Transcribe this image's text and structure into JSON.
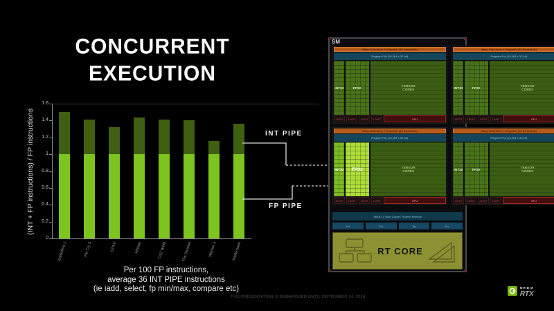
{
  "slide": {
    "title": [
      "CONCURRENT",
      "EXECUTION"
    ],
    "note": [
      "Per 100 FP instructions,",
      "average 36 INT PIPE instructions",
      "(ie iadd, select, fp min/max, compare etc)"
    ],
    "footer": "THIS PRESENTATION IS EMBARGOED UNTIL SEPTEMBER 14, 2018"
  },
  "chart_data": {
    "type": "bar",
    "stacked": true,
    "title": "",
    "xlabel": "",
    "ylabel": "(INT + FP instructions) / FP instructions",
    "ylim": [
      0,
      1.6
    ],
    "yticks": [
      "0",
      "0.2",
      "0.4",
      "0.6",
      "0.8",
      "1",
      "1.2",
      "1.4",
      "1.6"
    ],
    "grid": "top-line-only",
    "legend_position": "none",
    "categories": [
      "Battlefield 1",
      "Far Cry 5",
      "GTA V",
      "Hitman",
      "CoD WWII",
      "The Division",
      "Witcher 3",
      "Wolfenstein"
    ],
    "series": [
      {
        "name": "FP PIPE",
        "color": "#7dc41f",
        "values": [
          1,
          1,
          1,
          1,
          1,
          1,
          1,
          1
        ]
      },
      {
        "name": "INT PIPE",
        "color": "#415f10",
        "values": [
          0.5,
          0.41,
          0.32,
          0.44,
          0.41,
          0.4,
          0.16,
          0.36
        ]
      }
    ],
    "totals": [
      1.5,
      1.41,
      1.32,
      1.44,
      1.41,
      1.4,
      1.16,
      1.36
    ],
    "annotations": [
      {
        "label": "INT PIPE",
        "points_to": "INT32 unit in SM"
      },
      {
        "label": "FP PIPE",
        "points_to": "FP32 unit in SM"
      }
    ]
  },
  "pipes": {
    "int": "INT PIPE",
    "fp": "FP PIPE"
  },
  "sm": {
    "label": "SM",
    "quadrant": {
      "scheduler": "Warp Scheduler + Dispatch (32 thread/clk)",
      "register_file": "Register File (16,384 x 32-bit)",
      "int32": "INT32",
      "fp32": "FP32",
      "tensor": "TENSOR CORES",
      "ldst": "LD/ST",
      "sfu": "SFU"
    },
    "quadrant_count": 4,
    "highlight_quadrant": 2,
    "l1": "96KB L1 Data Cache / Shared Memory",
    "tex": "Tex",
    "tex_count": 4,
    "rt_core": "RT CORE"
  },
  "logo": {
    "brand": "NVIDIA",
    "product": "RTX"
  },
  "colors": {
    "background": "#000000",
    "fp_bar": "#7dc41f",
    "int_bar": "#415f10",
    "highlight_int32": "#7cbb22",
    "highlight_fp32": "#aedd3a",
    "scheduler_orange": "#b4591b",
    "register_blue": "#15455a",
    "rt_olive": "#8e9034"
  }
}
